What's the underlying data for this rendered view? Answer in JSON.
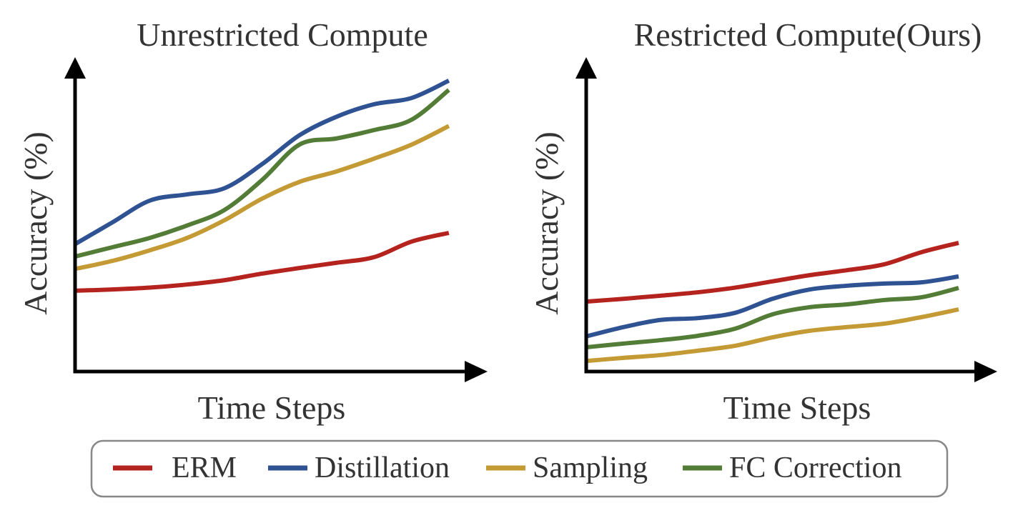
{
  "chart_data": [
    {
      "type": "line",
      "title": "Unrestricted Compute",
      "x_label": "Time Steps",
      "y_label": "Accuracy (%)",
      "x": [
        0,
        1,
        2,
        3,
        4,
        5,
        6,
        7,
        8,
        9,
        10
      ],
      "xlim": [
        0,
        10.5
      ],
      "ylim": [
        0,
        100
      ],
      "series": [
        {
          "values": [
            26,
            26.4,
            27,
            28,
            29.4,
            31.5,
            33.3,
            35,
            36.8,
            41.8,
            44.6
          ]
        },
        {
          "values": [
            41,
            48,
            55,
            57,
            59,
            66.7,
            76,
            82,
            86,
            88,
            93.6
          ]
        },
        {
          "values": [
            33,
            35.6,
            39,
            43,
            48.7,
            55.6,
            61,
            64.4,
            68.5,
            73,
            79
          ]
        },
        {
          "values": [
            37,
            40,
            43,
            47,
            52,
            61.6,
            73,
            75,
            77.7,
            81,
            90.6
          ]
        }
      ]
    },
    {
      "type": "line",
      "title": "Restricted Compute(Ours)",
      "x_label": "Time Steps",
      "y_label": "Accuracy (%)",
      "x": [
        0,
        1,
        2,
        3,
        4,
        5,
        6,
        7,
        8,
        9,
        10
      ],
      "xlim": [
        0,
        10.5
      ],
      "ylim": [
        0,
        100
      ],
      "series": [
        {
          "values": [
            22.5,
            23.4,
            24.4,
            25.5,
            27,
            29,
            31,
            32.6,
            34.5,
            38.4,
            41.4
          ]
        },
        {
          "values": [
            11.3,
            14.3,
            16.6,
            17.2,
            18.9,
            23.4,
            26.4,
            27.6,
            28.3,
            28.7,
            30.6
          ]
        },
        {
          "values": [
            3.4,
            4.4,
            5.3,
            6.7,
            8.3,
            11,
            13.1,
            14.3,
            15.4,
            17.5,
            20
          ]
        },
        {
          "values": [
            7.8,
            9,
            10.1,
            11.5,
            13.8,
            18.4,
            20.7,
            21.6,
            23,
            23.9,
            26.9
          ]
        }
      ]
    }
  ],
  "legend": [
    {
      "name": "ERM",
      "color": "#b5231e"
    },
    {
      "name": "Distillation",
      "color": "#2f5292"
    },
    {
      "name": "Sampling",
      "color": "#c49a35"
    },
    {
      "name": "FC Correction",
      "color": "#537d37"
    }
  ]
}
